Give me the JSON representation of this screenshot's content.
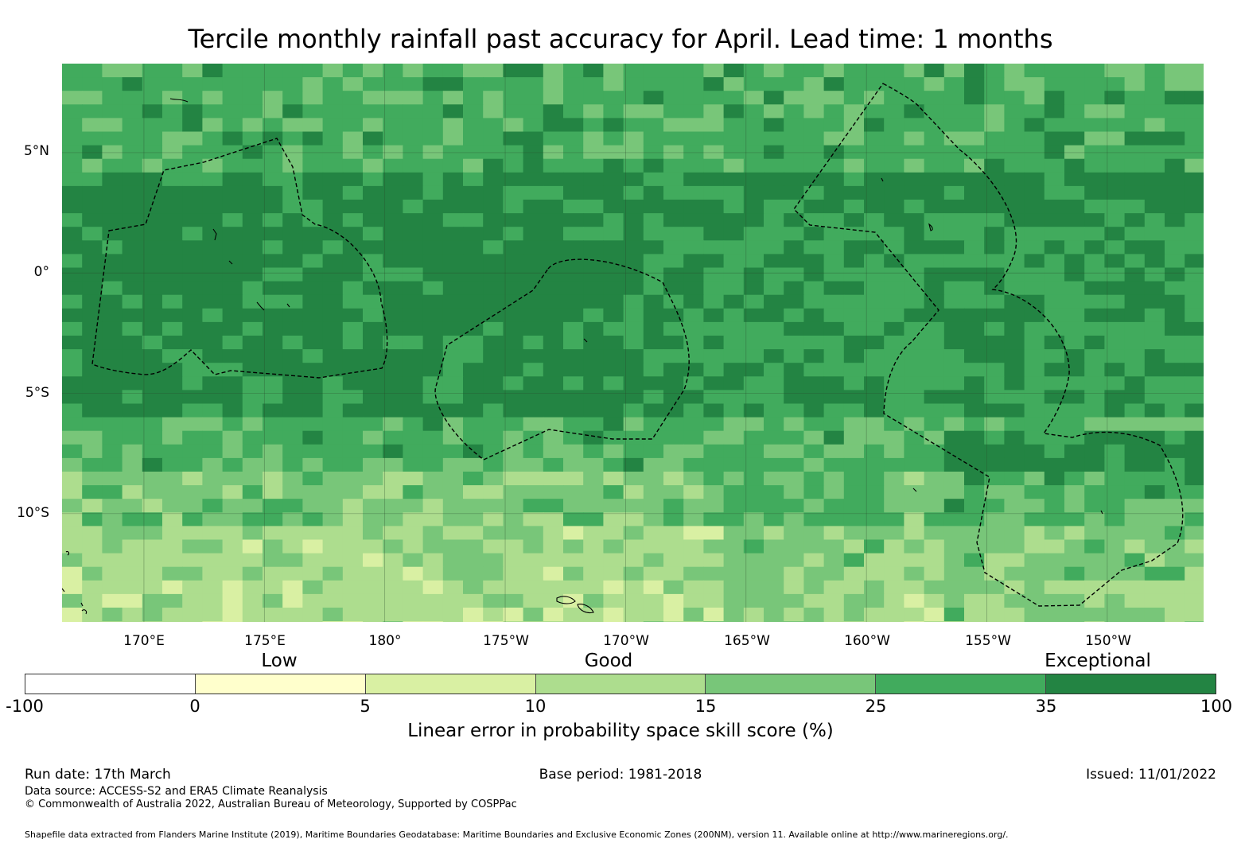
{
  "title": "Tercile monthly rainfall past accuracy for April. Lead time: 1 months",
  "latitude_labels": [
    {
      "text": "5°N",
      "deg": 5
    },
    {
      "text": "0°",
      "deg": 0
    },
    {
      "text": "5°S",
      "deg": -5
    },
    {
      "text": "10°S",
      "deg": -10
    }
  ],
  "longitude_labels": [
    {
      "text": "170°E",
      "deg": 170
    },
    {
      "text": "175°E",
      "deg": 175
    },
    {
      "text": "180°",
      "deg": 180
    },
    {
      "text": "175°W",
      "deg": 185
    },
    {
      "text": "170°W",
      "deg": 190
    },
    {
      "text": "165°W",
      "deg": 195
    },
    {
      "text": "160°W",
      "deg": 200
    },
    {
      "text": "155°W",
      "deg": 205
    },
    {
      "text": "150°W",
      "deg": 210
    }
  ],
  "map_extent": {
    "lon_min": 166.6,
    "lon_max": 214.0,
    "lat_min": -14.5,
    "lat_max": 8.7
  },
  "categories": [
    {
      "label": "Low",
      "value": 2.5
    },
    {
      "label": "Good",
      "value": 12.5
    },
    {
      "label": "Exceptional",
      "value": 67.5
    }
  ],
  "colorbar": {
    "ticks": [
      "-100",
      "0",
      "5",
      "10",
      "15",
      "25",
      "35",
      "100"
    ],
    "colors": [
      "#ffffff",
      "#ffffcc",
      "#d9f0a3",
      "#addd8e",
      "#78c679",
      "#41ab5d",
      "#238443"
    ],
    "title": "Linear error in probability space skill score (%)"
  },
  "footer": {
    "run_date": "Run date: 17th March",
    "base_period": "Base period: 1981-2018",
    "issued": "Issued: 11/01/2022",
    "data_source": "Data source: ACCESS-S2 and ERA5 Climate Reanalysis",
    "copyright": "© Commonwealth of Australia 2022, Australian Bureau of Meteorology, Supported by COSPPac",
    "shapefile": "Shapefile data extracted from Flanders Marine Institute (2019), Maritime Boundaries Geodatabase: Maritime Boundaries and Exclusive Economic Zones (200NM), version 11. Available online at http://www.marineregions.org/."
  }
}
